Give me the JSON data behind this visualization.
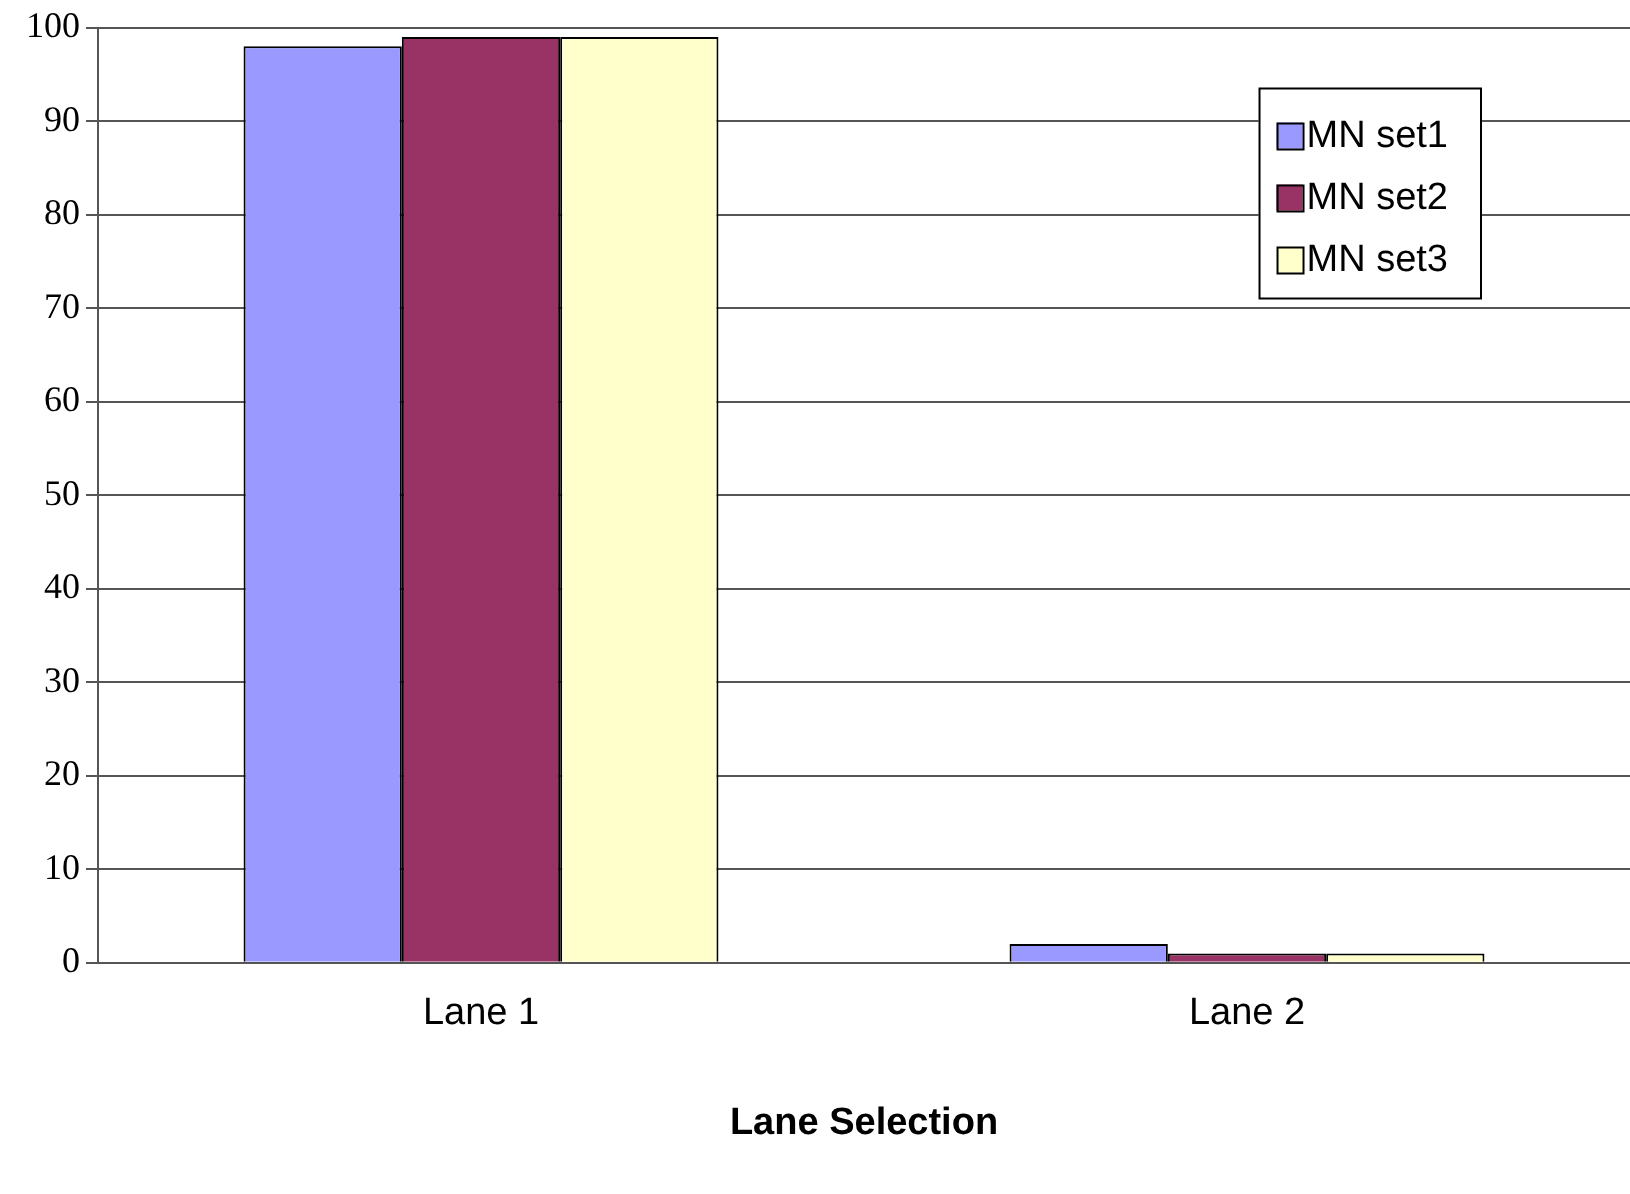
{
  "chart_data": {
    "type": "bar",
    "xlabel": "Lane Selection",
    "categories": [
      "Lane 1",
      "Lane 2"
    ],
    "series": [
      {
        "name": "MN set1",
        "color": "#9999ff",
        "values": [
          98,
          2
        ]
      },
      {
        "name": "MN set2",
        "color": "#993366",
        "values": [
          99,
          1
        ]
      },
      {
        "name": "MN set3",
        "color": "#ffffcc",
        "values": [
          99,
          1
        ]
      }
    ],
    "ylim": [
      0,
      100
    ],
    "yticks": [
      0,
      10,
      20,
      30,
      40,
      50,
      60,
      70,
      80,
      90,
      100
    ],
    "grid": "y",
    "legend": "top right"
  }
}
